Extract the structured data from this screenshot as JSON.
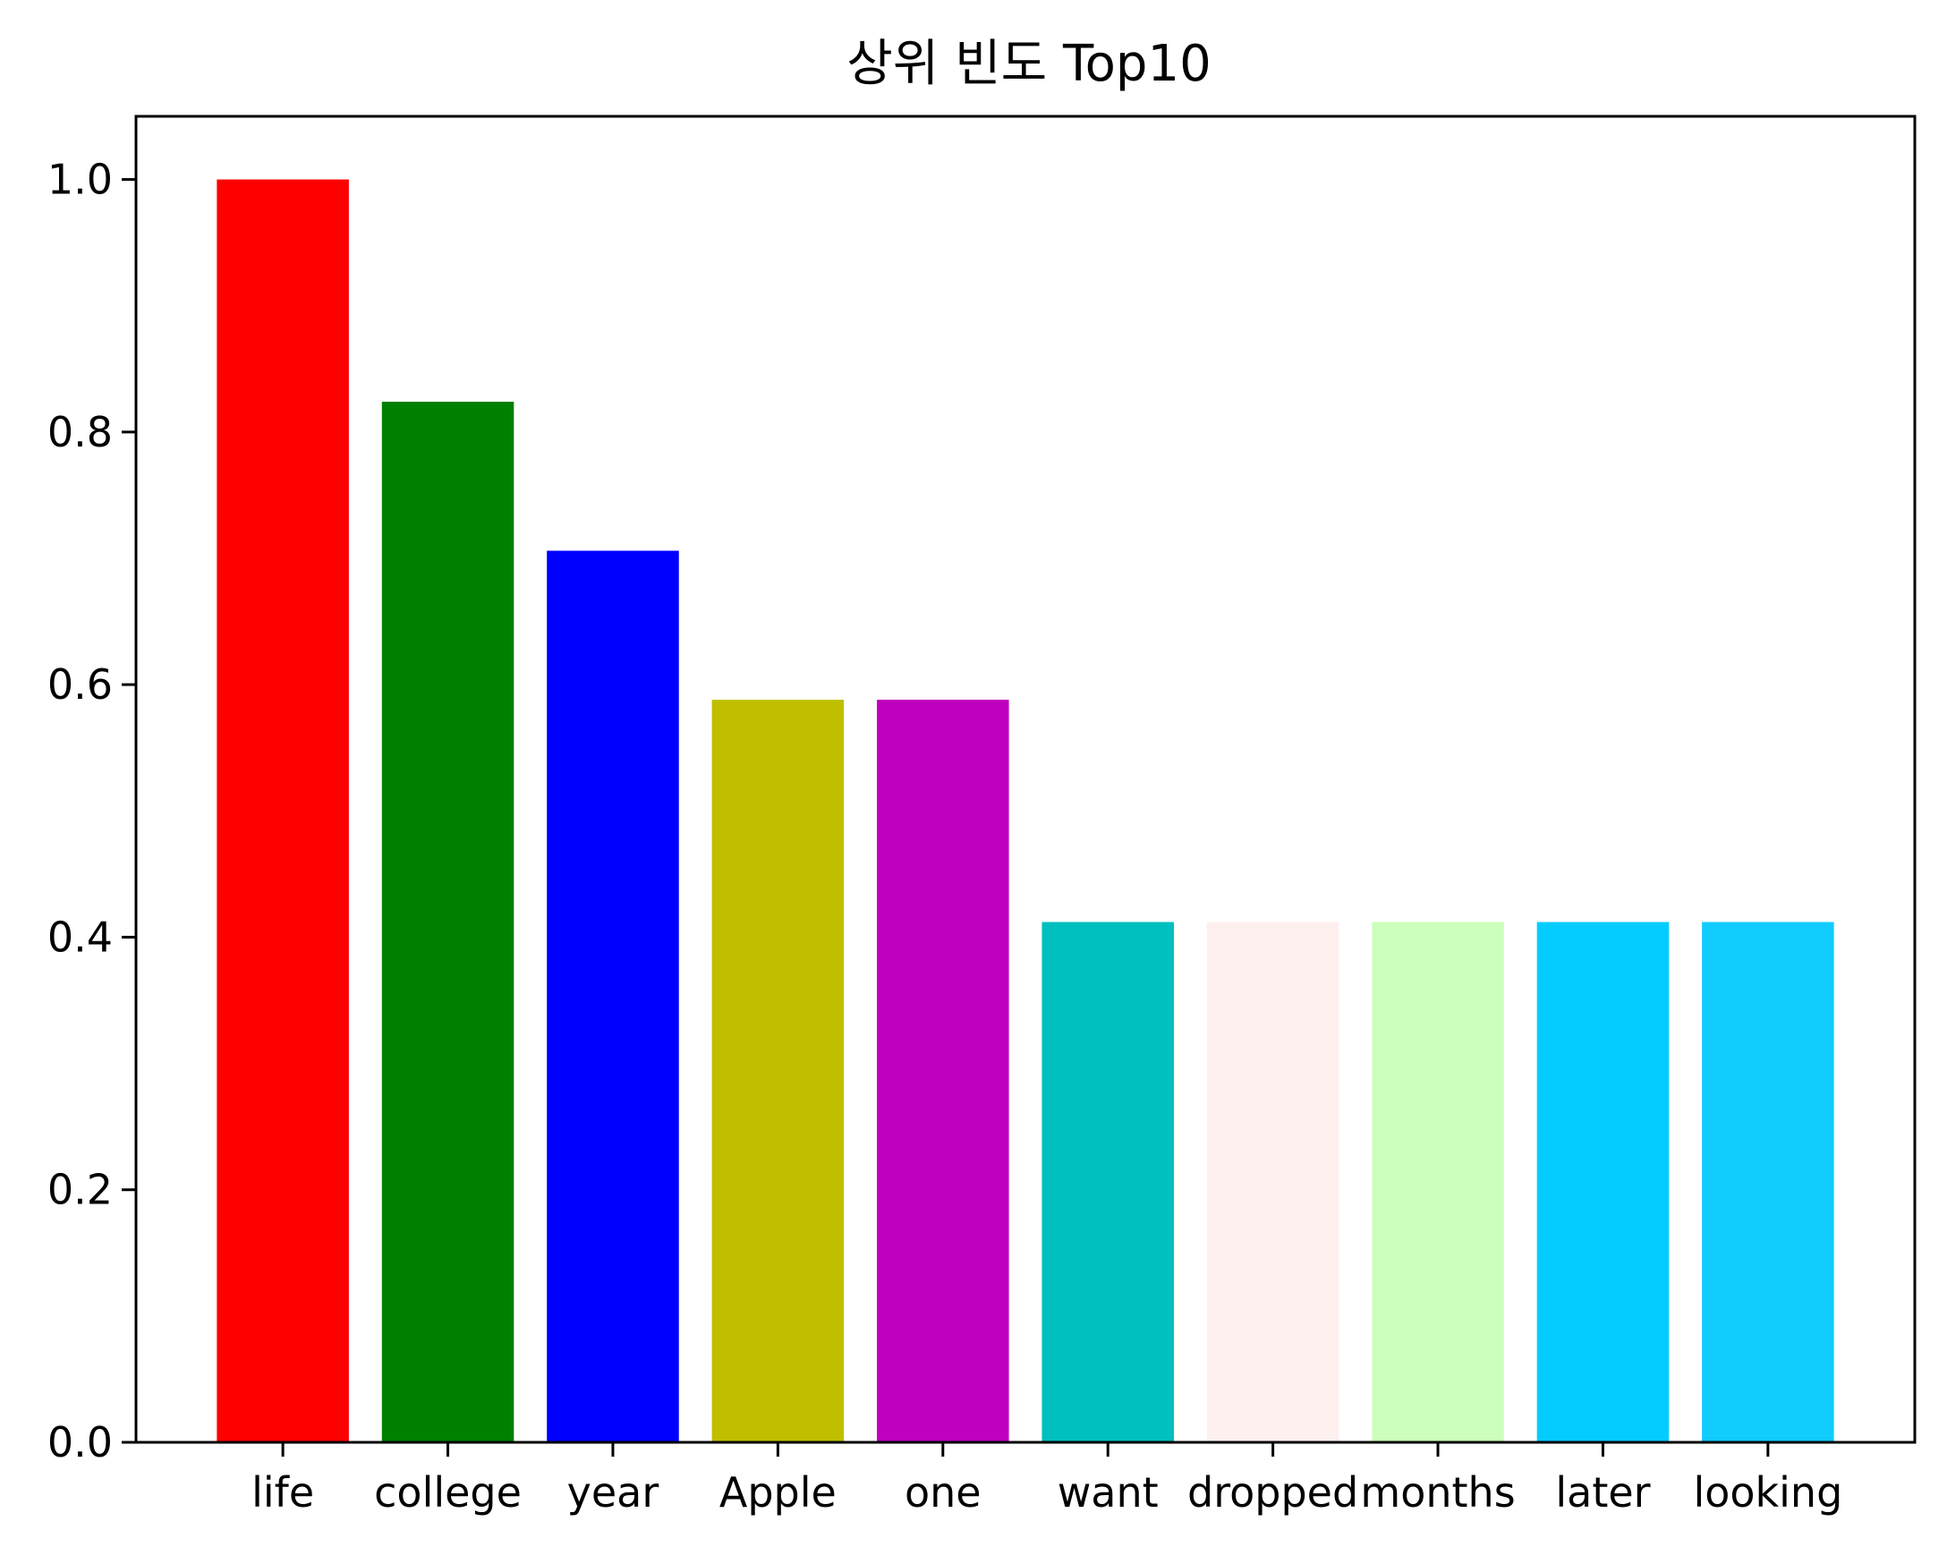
{
  "chart_data": {
    "type": "bar",
    "title": "상위 빈도 Top10",
    "xlabel": "",
    "ylabel": "",
    "categories": [
      "life",
      "college",
      "year",
      "Apple",
      "one",
      "want",
      "dropped",
      "months",
      "later",
      "looking"
    ],
    "values": [
      1.0,
      0.824,
      0.706,
      0.588,
      0.588,
      0.412,
      0.412,
      0.412,
      0.412,
      0.412
    ],
    "colors": [
      "#ff0000",
      "#008000",
      "#0000ff",
      "#bfbf00",
      "#bf00bf",
      "#00bfbf",
      "#fff0f0",
      "#ccffbb",
      "#05ccff",
      "#11ccff"
    ],
    "ylim": [
      0,
      1.05
    ],
    "yticks": [
      0.0,
      0.2,
      0.4,
      0.6,
      0.8,
      1.0
    ],
    "ytick_labels": [
      "0.0",
      "0.2",
      "0.4",
      "0.6",
      "0.8",
      "1.0"
    ],
    "grid": false,
    "legend": "none"
  }
}
